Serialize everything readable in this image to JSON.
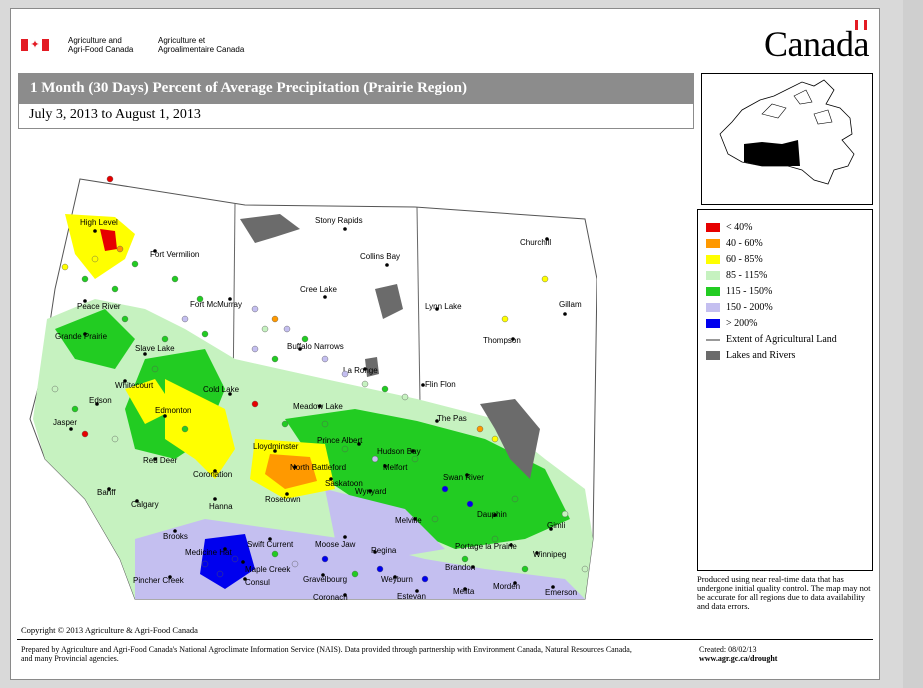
{
  "header": {
    "org_en_line1": "Agriculture and",
    "org_en_line2": "Agri-Food Canada",
    "org_fr_line1": "Agriculture et",
    "org_fr_line2": "Agroalimentaire Canada",
    "wordmark": "Canada"
  },
  "title": "1 Month (30 Days) Percent of Average Precipitation  (Prairie Region)",
  "date_range": "July 3, 2013 to August 1, 2013",
  "legend": {
    "items": [
      {
        "label": "< 40%",
        "color": "#e60000"
      },
      {
        "label": "40 - 60%",
        "color": "#ff9900"
      },
      {
        "label": "60 - 85%",
        "color": "#ffff00"
      },
      {
        "label": "85 - 115%",
        "color": "#c6f2c0"
      },
      {
        "label": "115 - 150%",
        "color": "#22cc22"
      },
      {
        "label": "150 - 200%",
        "color": "#c4bff0"
      },
      {
        "label": "> 200%",
        "color": "#0000ee"
      },
      {
        "label": "Extent of Agricultural Land",
        "color": "#999999"
      },
      {
        "label": "Lakes and Rivers",
        "color": "#6b6b6b"
      }
    ]
  },
  "note": "Produced using near real-time data that has undergone initial quality control.  The map may not be accurate for all regions due to data availability and data errors.",
  "copyright": "Copyright © 2013 Agriculture & Agri-Food Canada",
  "footer": {
    "prepared": "Prepared by Agriculture and Agri-Food Canada's National Agroclimate Information Service (NAIS).   Data provided through partnership with Environment Canada, Natural Resources Canada, and many Provincial agencies.",
    "created": "Created: 08/02/13",
    "url": "www.agr.gc.ca/drought"
  },
  "map": {
    "cities": [
      {
        "name": "High Level"
      },
      {
        "name": "Fort Vermilion"
      },
      {
        "name": "Peace River"
      },
      {
        "name": "Fort McMurray"
      },
      {
        "name": "Grande Prairie"
      },
      {
        "name": "Slave Lake"
      },
      {
        "name": "Whitecourt"
      },
      {
        "name": "Edson"
      },
      {
        "name": "Cold Lake"
      },
      {
        "name": "Edmonton"
      },
      {
        "name": "Jasper"
      },
      {
        "name": "Red Deer"
      },
      {
        "name": "Coronation"
      },
      {
        "name": "Hanna"
      },
      {
        "name": "Banff"
      },
      {
        "name": "Calgary"
      },
      {
        "name": "Brooks"
      },
      {
        "name": "Medicine Hat"
      },
      {
        "name": "Pincher Creek"
      },
      {
        "name": "Stony Rapids"
      },
      {
        "name": "Collins Bay"
      },
      {
        "name": "Cree Lake"
      },
      {
        "name": "Buffalo Narrows"
      },
      {
        "name": "La Ronge"
      },
      {
        "name": "Meadow Lake"
      },
      {
        "name": "Lloydminster"
      },
      {
        "name": "North Battleford"
      },
      {
        "name": "Prince Albert"
      },
      {
        "name": "Melfort"
      },
      {
        "name": "Hudson Bay"
      },
      {
        "name": "Saskatoon"
      },
      {
        "name": "Wynyard"
      },
      {
        "name": "Rosetown"
      },
      {
        "name": "Swift Current"
      },
      {
        "name": "Moose Jaw"
      },
      {
        "name": "Regina"
      },
      {
        "name": "Maple Creek"
      },
      {
        "name": "Consul"
      },
      {
        "name": "Gravelbourg"
      },
      {
        "name": "Coronach"
      },
      {
        "name": "Weyburn"
      },
      {
        "name": "Estevan"
      },
      {
        "name": "Melville"
      },
      {
        "name": "Churchill"
      },
      {
        "name": "Lynn Lake"
      },
      {
        "name": "Gillam"
      },
      {
        "name": "Thompson"
      },
      {
        "name": "Flin Flon"
      },
      {
        "name": "The Pas"
      },
      {
        "name": "Swan River"
      },
      {
        "name": "Dauphin"
      },
      {
        "name": "Gimli"
      },
      {
        "name": "Portage la Prairie"
      },
      {
        "name": "Winnipeg"
      },
      {
        "name": "Brandon"
      },
      {
        "name": "Morden"
      },
      {
        "name": "Emerson"
      },
      {
        "name": "Melita"
      }
    ]
  }
}
